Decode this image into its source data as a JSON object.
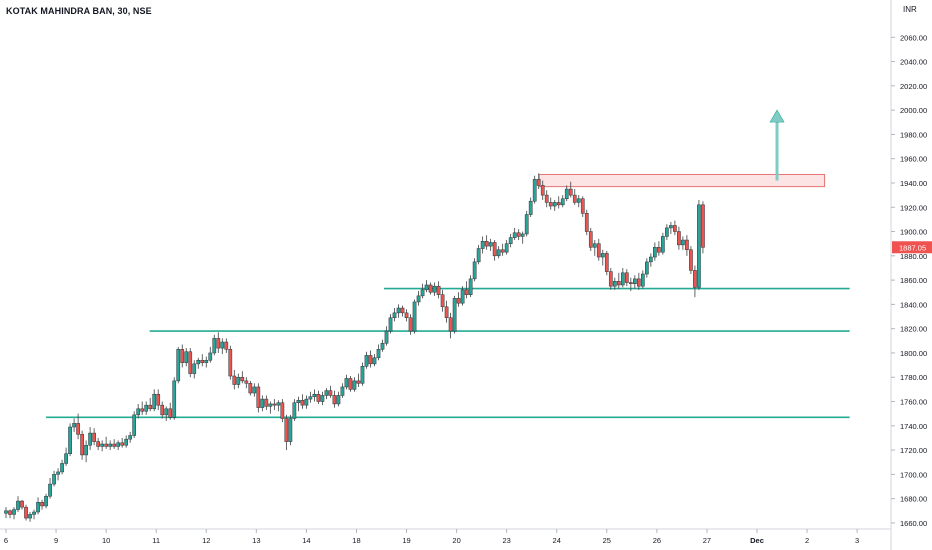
{
  "header": {
    "symbol_title": "KOTAK MAHINDRA BAN, 30, NSE",
    "currency": "INR"
  },
  "colors": {
    "up": "#26a69a",
    "down": "#ef5350",
    "up_fill": "#ffffff",
    "support_line": "#22ab94",
    "resistance_fill": "#fde4e4",
    "resistance_border": "#e57373",
    "arrow": "#80cbc4",
    "price_badge": "#ef5350",
    "axis_text": "#131722"
  },
  "chart_data": {
    "type": "candlestick",
    "title": "KOTAK MAHINDRA BAN, 30, NSE",
    "currency": "INR",
    "ylim": [
      1655,
      2080
    ],
    "y_ticks": [
      1660,
      1680,
      1700,
      1720,
      1740,
      1760,
      1780,
      1800,
      1820,
      1840,
      1860,
      1880,
      1900,
      1920,
      1940,
      1960,
      1980,
      2000,
      2020,
      2040,
      2060
    ],
    "y_tick_labels": [
      "1660.00",
      "1680.00",
      "1700.00",
      "1720.00",
      "1740.00",
      "1760.00",
      "1780.00",
      "1800.00",
      "1820.00",
      "1840.00",
      "1860.00",
      "1880.00",
      "1900.00",
      "1920.00",
      "1940.00",
      "1960.00",
      "1980.00",
      "2000.00",
      "2020.00",
      "2040.00",
      "2060.00"
    ],
    "x_range": [
      0,
      28
    ],
    "x_ticks": [
      {
        "x": 0.5,
        "label": "6"
      },
      {
        "x": 1.5,
        "label": "9"
      },
      {
        "x": 2.5,
        "label": "10"
      },
      {
        "x": 3.5,
        "label": "11"
      },
      {
        "x": 4.5,
        "label": "12"
      },
      {
        "x": 5.5,
        "label": "13"
      },
      {
        "x": 6.5,
        "label": "14"
      },
      {
        "x": 7.5,
        "label": "18"
      },
      {
        "x": 8.5,
        "label": "19"
      },
      {
        "x": 9.5,
        "label": "20"
      },
      {
        "x": 10.5,
        "label": "23"
      },
      {
        "x": 11.5,
        "label": "24"
      },
      {
        "x": 12.5,
        "label": "25"
      },
      {
        "x": 13.5,
        "label": "26"
      },
      {
        "x": 14.5,
        "label": "27"
      },
      {
        "x": 15.5,
        "label": "Dec"
      },
      {
        "x": 16.5,
        "label": "2"
      },
      {
        "x": 17.5,
        "label": "3"
      }
    ],
    "last_price": 1887.05,
    "last_price_label": "1887.05",
    "candles": [
      [
        0.0,
        1668,
        1673,
        1664,
        1670
      ],
      [
        0.08,
        1670,
        1671,
        1664,
        1667
      ],
      [
        0.16,
        1667,
        1673,
        1663,
        1671
      ],
      [
        0.24,
        1671,
        1682,
        1669,
        1678
      ],
      [
        0.32,
        1678,
        1679,
        1671,
        1673
      ],
      [
        0.4,
        1673,
        1675,
        1662,
        1664
      ],
      [
        0.48,
        1664,
        1669,
        1661,
        1667
      ],
      [
        0.56,
        1667,
        1671,
        1663,
        1669
      ],
      [
        0.64,
        1669,
        1681,
        1667,
        1677
      ],
      [
        0.72,
        1677,
        1679,
        1671,
        1674
      ],
      [
        0.8,
        1674,
        1684,
        1672,
        1682
      ],
      [
        0.88,
        1682,
        1697,
        1680,
        1692
      ],
      [
        0.96,
        1692,
        1703,
        1690,
        1700
      ],
      [
        1.04,
        1700,
        1705,
        1695,
        1702
      ],
      [
        1.12,
        1702,
        1712,
        1700,
        1709
      ],
      [
        1.2,
        1709,
        1722,
        1707,
        1717
      ],
      [
        1.28,
        1717,
        1742,
        1715,
        1739
      ],
      [
        1.36,
        1739,
        1746,
        1735,
        1742
      ],
      [
        1.44,
        1742,
        1750,
        1729,
        1733
      ],
      [
        1.52,
        1733,
        1736,
        1712,
        1716
      ],
      [
        1.6,
        1716,
        1728,
        1710,
        1724
      ],
      [
        1.68,
        1724,
        1739,
        1720,
        1734
      ],
      [
        1.76,
        1734,
        1738,
        1724,
        1727
      ],
      [
        1.84,
        1727,
        1730,
        1720,
        1723
      ],
      [
        1.92,
        1723,
        1728,
        1719,
        1725
      ],
      [
        2.0,
        1725,
        1731,
        1721,
        1723
      ],
      [
        2.08,
        1723,
        1728,
        1720,
        1725
      ],
      [
        2.16,
        1725,
        1729,
        1721,
        1723
      ],
      [
        2.24,
        1723,
        1728,
        1720,
        1726
      ],
      [
        2.32,
        1726,
        1730,
        1722,
        1724
      ],
      [
        2.4,
        1724,
        1732,
        1722,
        1729
      ],
      [
        2.48,
        1729,
        1735,
        1726,
        1732
      ],
      [
        2.56,
        1732,
        1752,
        1730,
        1749
      ],
      [
        2.64,
        1749,
        1758,
        1746,
        1754
      ],
      [
        2.72,
        1754,
        1760,
        1749,
        1752
      ],
      [
        2.8,
        1752,
        1760,
        1749,
        1757
      ],
      [
        2.88,
        1757,
        1763,
        1752,
        1754
      ],
      [
        2.96,
        1754,
        1770,
        1752,
        1766
      ],
      [
        3.04,
        1766,
        1770,
        1753,
        1757
      ],
      [
        3.12,
        1757,
        1760,
        1746,
        1749
      ],
      [
        3.2,
        1749,
        1756,
        1744,
        1754
      ],
      [
        3.28,
        1754,
        1759,
        1745,
        1747
      ],
      [
        3.36,
        1747,
        1780,
        1745,
        1777
      ],
      [
        3.44,
        1777,
        1805,
        1775,
        1803
      ],
      [
        3.52,
        1803,
        1807,
        1788,
        1792
      ],
      [
        3.6,
        1792,
        1804,
        1789,
        1801
      ],
      [
        3.68,
        1801,
        1804,
        1780,
        1783
      ],
      [
        3.76,
        1783,
        1794,
        1779,
        1791
      ],
      [
        3.84,
        1791,
        1796,
        1787,
        1794
      ],
      [
        3.92,
        1794,
        1799,
        1789,
        1792
      ],
      [
        4.0,
        1792,
        1797,
        1788,
        1794
      ],
      [
        4.08,
        1794,
        1805,
        1792,
        1800
      ],
      [
        4.16,
        1800,
        1815,
        1798,
        1812
      ],
      [
        4.24,
        1812,
        1817,
        1800,
        1804
      ],
      [
        4.32,
        1804,
        1812,
        1799,
        1809
      ],
      [
        4.4,
        1809,
        1812,
        1800,
        1803
      ],
      [
        4.48,
        1803,
        1806,
        1778,
        1781
      ],
      [
        4.56,
        1781,
        1786,
        1770,
        1774
      ],
      [
        4.64,
        1774,
        1783,
        1771,
        1780
      ],
      [
        4.72,
        1780,
        1785,
        1775,
        1777
      ],
      [
        4.8,
        1777,
        1780,
        1771,
        1775
      ],
      [
        4.88,
        1775,
        1777,
        1765,
        1767
      ],
      [
        4.96,
        1767,
        1775,
        1764,
        1772
      ],
      [
        5.04,
        1772,
        1775,
        1751,
        1755
      ],
      [
        5.12,
        1755,
        1765,
        1752,
        1762
      ],
      [
        5.2,
        1762,
        1765,
        1753,
        1756
      ],
      [
        5.28,
        1756,
        1760,
        1750,
        1758
      ],
      [
        5.36,
        1758,
        1762,
        1753,
        1757
      ],
      [
        5.44,
        1757,
        1761,
        1752,
        1759
      ],
      [
        5.52,
        1759,
        1762,
        1743,
        1746
      ],
      [
        5.6,
        1746,
        1749,
        1720,
        1727
      ],
      [
        5.68,
        1727,
        1749,
        1724,
        1746
      ],
      [
        5.76,
        1746,
        1762,
        1744,
        1759
      ],
      [
        5.84,
        1759,
        1764,
        1752,
        1761
      ],
      [
        5.92,
        1761,
        1766,
        1754,
        1757
      ],
      [
        6.0,
        1757,
        1765,
        1754,
        1762
      ],
      [
        6.08,
        1762,
        1768,
        1759,
        1764
      ],
      [
        6.16,
        1764,
        1770,
        1760,
        1766
      ],
      [
        6.24,
        1766,
        1769,
        1758,
        1760
      ],
      [
        6.32,
        1760,
        1768,
        1757,
        1765
      ],
      [
        6.4,
        1765,
        1771,
        1762,
        1769
      ],
      [
        6.48,
        1769,
        1773,
        1763,
        1765
      ],
      [
        6.56,
        1765,
        1769,
        1755,
        1758
      ],
      [
        6.64,
        1758,
        1768,
        1756,
        1765
      ],
      [
        6.72,
        1765,
        1775,
        1763,
        1772
      ],
      [
        6.8,
        1772,
        1782,
        1770,
        1779
      ],
      [
        6.88,
        1779,
        1781,
        1768,
        1770
      ],
      [
        6.96,
        1770,
        1780,
        1768,
        1777
      ],
      [
        7.04,
        1777,
        1783,
        1772,
        1775
      ],
      [
        7.12,
        1775,
        1792,
        1773,
        1789
      ],
      [
        7.2,
        1789,
        1801,
        1787,
        1798
      ],
      [
        7.28,
        1798,
        1802,
        1788,
        1791
      ],
      [
        7.36,
        1791,
        1799,
        1789,
        1796
      ],
      [
        7.44,
        1796,
        1807,
        1794,
        1803
      ],
      [
        7.52,
        1803,
        1811,
        1801,
        1808
      ],
      [
        7.6,
        1808,
        1822,
        1806,
        1818
      ],
      [
        7.68,
        1818,
        1832,
        1816,
        1829
      ],
      [
        7.76,
        1829,
        1837,
        1826,
        1833
      ],
      [
        7.84,
        1833,
        1840,
        1829,
        1837
      ],
      [
        7.92,
        1837,
        1839,
        1830,
        1833
      ],
      [
        8.0,
        1833,
        1836,
        1826,
        1829
      ],
      [
        8.08,
        1829,
        1832,
        1815,
        1818
      ],
      [
        8.16,
        1818,
        1844,
        1816,
        1842
      ],
      [
        8.24,
        1842,
        1851,
        1839,
        1847
      ],
      [
        8.32,
        1847,
        1857,
        1845,
        1852
      ],
      [
        8.4,
        1852,
        1860,
        1850,
        1856
      ],
      [
        8.48,
        1856,
        1858,
        1848,
        1850
      ],
      [
        8.56,
        1850,
        1858,
        1847,
        1855
      ],
      [
        8.64,
        1855,
        1859,
        1845,
        1848
      ],
      [
        8.72,
        1848,
        1852,
        1834,
        1838
      ],
      [
        8.8,
        1838,
        1843,
        1825,
        1829
      ],
      [
        8.88,
        1829,
        1833,
        1812,
        1818
      ],
      [
        8.96,
        1818,
        1847,
        1816,
        1845
      ],
      [
        9.04,
        1845,
        1850,
        1838,
        1841
      ],
      [
        9.12,
        1841,
        1855,
        1839,
        1852
      ],
      [
        9.2,
        1852,
        1859,
        1845,
        1848
      ],
      [
        9.28,
        1848,
        1864,
        1846,
        1861
      ],
      [
        9.36,
        1861,
        1878,
        1859,
        1875
      ],
      [
        9.44,
        1875,
        1889,
        1873,
        1886
      ],
      [
        9.52,
        1886,
        1896,
        1882,
        1892
      ],
      [
        9.6,
        1892,
        1897,
        1885,
        1888
      ],
      [
        9.68,
        1888,
        1894,
        1884,
        1891
      ],
      [
        9.76,
        1891,
        1893,
        1876,
        1880
      ],
      [
        9.84,
        1880,
        1888,
        1878,
        1885
      ],
      [
        9.92,
        1885,
        1890,
        1880,
        1883
      ],
      [
        10.0,
        1883,
        1893,
        1881,
        1890
      ],
      [
        10.08,
        1890,
        1898,
        1887,
        1895
      ],
      [
        10.16,
        1895,
        1903,
        1893,
        1899
      ],
      [
        10.24,
        1899,
        1902,
        1893,
        1896
      ],
      [
        10.32,
        1896,
        1900,
        1890,
        1898
      ],
      [
        10.4,
        1898,
        1917,
        1896,
        1914
      ],
      [
        10.48,
        1914,
        1928,
        1912,
        1925
      ],
      [
        10.56,
        1925,
        1946,
        1923,
        1943
      ],
      [
        10.64,
        1943,
        1948,
        1935,
        1938
      ],
      [
        10.72,
        1938,
        1942,
        1926,
        1930
      ],
      [
        10.8,
        1930,
        1934,
        1920,
        1924
      ],
      [
        10.88,
        1924,
        1928,
        1918,
        1921
      ],
      [
        10.96,
        1921,
        1926,
        1917,
        1924
      ],
      [
        11.04,
        1924,
        1929,
        1919,
        1922
      ],
      [
        11.12,
        1922,
        1930,
        1920,
        1927
      ],
      [
        11.2,
        1927,
        1938,
        1925,
        1935
      ],
      [
        11.28,
        1935,
        1941,
        1928,
        1930
      ],
      [
        11.36,
        1930,
        1935,
        1922,
        1924
      ],
      [
        11.44,
        1924,
        1930,
        1920,
        1927
      ],
      [
        11.52,
        1927,
        1929,
        1912,
        1915
      ],
      [
        11.6,
        1915,
        1918,
        1897,
        1900
      ],
      [
        11.68,
        1900,
        1903,
        1884,
        1887
      ],
      [
        11.76,
        1887,
        1893,
        1880,
        1890
      ],
      [
        11.84,
        1890,
        1894,
        1876,
        1879
      ],
      [
        11.92,
        1879,
        1885,
        1872,
        1882
      ],
      [
        12.0,
        1882,
        1884,
        1864,
        1867
      ],
      [
        12.08,
        1867,
        1870,
        1852,
        1855
      ],
      [
        12.16,
        1855,
        1862,
        1852,
        1859
      ],
      [
        12.24,
        1859,
        1866,
        1853,
        1856
      ],
      [
        12.32,
        1856,
        1870,
        1854,
        1866
      ],
      [
        12.4,
        1866,
        1869,
        1855,
        1858
      ],
      [
        12.48,
        1858,
        1862,
        1851,
        1857
      ],
      [
        12.56,
        1857,
        1864,
        1853,
        1861
      ],
      [
        12.64,
        1861,
        1866,
        1852,
        1855
      ],
      [
        12.72,
        1855,
        1868,
        1853,
        1865
      ],
      [
        12.8,
        1865,
        1878,
        1862,
        1875
      ],
      [
        12.88,
        1875,
        1882,
        1871,
        1879
      ],
      [
        12.96,
        1879,
        1891,
        1876,
        1887
      ],
      [
        13.04,
        1887,
        1892,
        1880,
        1883
      ],
      [
        13.12,
        1883,
        1899,
        1881,
        1896
      ],
      [
        13.2,
        1896,
        1906,
        1893,
        1903
      ],
      [
        13.28,
        1903,
        1908,
        1898,
        1905
      ],
      [
        13.36,
        1905,
        1909,
        1897,
        1900
      ],
      [
        13.44,
        1900,
        1904,
        1885,
        1889
      ],
      [
        13.52,
        1889,
        1896,
        1885,
        1893
      ],
      [
        13.6,
        1893,
        1897,
        1880,
        1885
      ],
      [
        13.68,
        1885,
        1888,
        1865,
        1868
      ],
      [
        13.76,
        1868,
        1872,
        1846,
        1854
      ],
      [
        13.84,
        1854,
        1926,
        1852,
        1922
      ],
      [
        13.92,
        1922,
        1925,
        1882,
        1887
      ]
    ],
    "annotations": {
      "support_lines": [
        {
          "level": 1853,
          "from": 8.05,
          "to": 17.35
        },
        {
          "level": 1818,
          "from": 3.37,
          "to": 17.35
        },
        {
          "level": 1747,
          "from": 1.3,
          "to": 17.35
        }
      ],
      "resistance_zone": {
        "from": 11.15,
        "to": 16.85,
        "low": 1937,
        "high": 1947
      },
      "arrow": {
        "x": 15.9,
        "from": 1942,
        "to": 2000
      }
    }
  }
}
